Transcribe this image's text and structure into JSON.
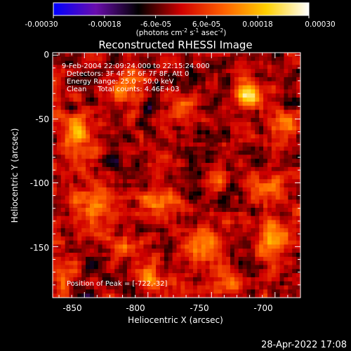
{
  "chart_data": {
    "type": "heatmap",
    "title": "Reconstructed RHESSI Image",
    "xlabel": "Heliocentric X (arcsec)",
    "ylabel": "Heliocentric Y (arcsec)",
    "xlim": [
      -875,
      -680
    ],
    "ylim": [
      -190,
      2
    ],
    "x_ticks": [
      "-850",
      "-800",
      "-750",
      "-700"
    ],
    "x_tick_values": [
      -850,
      -800,
      -750,
      -700
    ],
    "y_ticks": [
      "0",
      "-50",
      "-100",
      "-150"
    ],
    "y_tick_values": [
      0,
      -50,
      -100,
      -150
    ],
    "colorbar": {
      "range": [
        -0.0003,
        0.0003
      ],
      "tick_labels": [
        "-0.00030",
        "-0.00018",
        "-6.0e-05",
        "6.0e-05",
        "0.00018",
        "0.00030"
      ],
      "tick_values": [
        -0.0003,
        -0.00018,
        -6e-05,
        6e-05,
        0.00018,
        0.0003
      ],
      "unit_label": "(photons cm",
      "unit_sup1": "-2",
      "unit_mid1": " s",
      "unit_sup2": "-1",
      "unit_mid2": " asec",
      "unit_sup3": "-2",
      "unit_end": ")",
      "colormap": [
        "#0000ff",
        "#6a0dad",
        "#000000",
        "#d00000",
        "#ff6000",
        "#ffd000",
        "#ffffff"
      ]
    },
    "annotations": {
      "line1": "9-Feb-2004 22:09:24.000 to 22:15:24.000",
      "line2": "Detectors: 3F 4F 5F 6F 7F 8F, Att 0",
      "line3": "Energy Range: 25.0 - 50.0 keV",
      "line4": "Clean     Total counts: 4.46E+03",
      "peak": "Position of Peak = [-722,-32]"
    },
    "grid": false,
    "peak": {
      "x": -722,
      "y": -32
    },
    "hotspots": [
      {
        "x": -722,
        "y": -32,
        "sigma": 7,
        "amp": 1.0
      },
      {
        "x": -790,
        "y": -112,
        "sigma": 8,
        "amp": 0.7
      },
      {
        "x": -853,
        "y": -62,
        "sigma": 12,
        "amp": 0.55
      },
      {
        "x": -700,
        "y": -148,
        "sigma": 10,
        "amp": 0.65
      },
      {
        "x": -758,
        "y": -148,
        "sigma": 10,
        "amp": 0.6
      },
      {
        "x": -843,
        "y": -118,
        "sigma": 12,
        "amp": 0.5
      },
      {
        "x": -815,
        "y": -25,
        "sigma": 9,
        "amp": 0.55
      },
      {
        "x": -735,
        "y": -178,
        "sigma": 8,
        "amp": 0.55
      },
      {
        "x": -868,
        "y": -170,
        "sigma": 8,
        "amp": 0.45
      },
      {
        "x": -695,
        "y": -55,
        "sigma": 10,
        "amp": 0.5
      },
      {
        "x": -705,
        "y": -105,
        "sigma": 8,
        "amp": 0.5
      },
      {
        "x": -800,
        "y": -175,
        "sigma": 9,
        "amp": 0.5
      },
      {
        "x": -770,
        "y": -45,
        "sigma": 8,
        "amp": 0.45
      },
      {
        "x": -745,
        "y": -95,
        "sigma": 8,
        "amp": 0.4
      },
      {
        "x": -820,
        "y": -150,
        "sigma": 7,
        "amp": 0.4
      }
    ]
  },
  "footer": {
    "timestamp": "28-Apr-2022 17:08"
  }
}
